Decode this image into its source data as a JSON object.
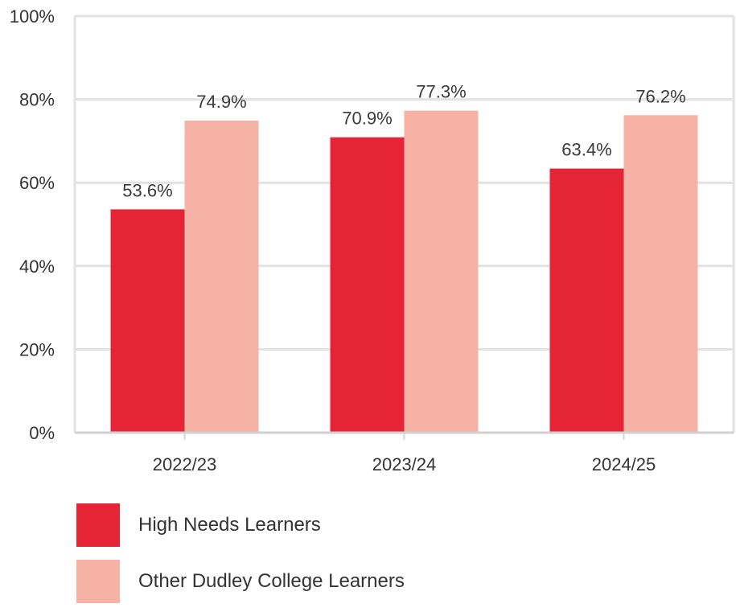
{
  "chart_data": {
    "type": "bar",
    "title": "",
    "xlabel": "",
    "ylabel": "",
    "categories": [
      "2022/23",
      "2023/24",
      "2024/25"
    ],
    "series": [
      {
        "name": "High Needs Learners",
        "values": [
          53.6,
          70.9,
          63.4
        ],
        "labels": [
          "53.6%",
          "70.9%",
          "63.4%"
        ],
        "color": "#e52535"
      },
      {
        "name": "Other Dudley College Learners",
        "values": [
          74.9,
          77.3,
          76.2
        ],
        "labels": [
          "74.9%",
          "77.3%",
          "76.2%"
        ],
        "color": "#f6b3a5"
      }
    ],
    "ylim": [
      0,
      100
    ],
    "yticks": [
      0,
      20,
      40,
      60,
      80,
      100
    ],
    "ytick_labels": [
      "0%",
      "20%",
      "40%",
      "60%",
      "80%",
      "100%"
    ],
    "grid": true,
    "legend_position": "bottom-left"
  }
}
